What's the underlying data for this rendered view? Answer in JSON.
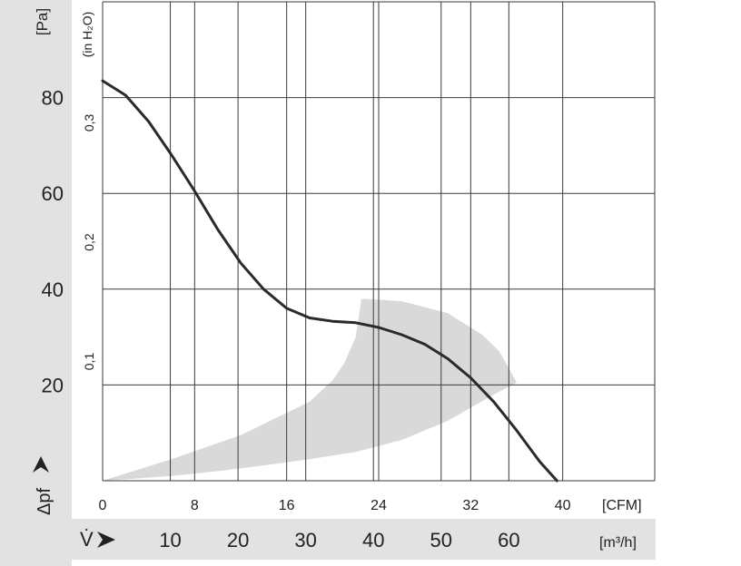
{
  "chart_data": {
    "type": "line",
    "y_unit_label": "[Pa]",
    "y2_unit_label": "(in H₂O)",
    "y_axis_symbol": "Δpf",
    "x_axis_symbol": "V̇",
    "x_top_unit_label": "[CFM]",
    "x_bottom_unit_label": "[m³/h]",
    "ylim": [
      0,
      100
    ],
    "xlim_cfm": [
      0,
      48
    ],
    "y_ticks": [
      "20",
      "40",
      "60",
      "80"
    ],
    "y2_ticks": [
      "0,1",
      "0,2",
      "0,3"
    ],
    "y2_tick_values_pa": [
      24.91,
      49.82,
      74.73
    ],
    "x_top_ticks": [
      "0",
      "8",
      "16",
      "24",
      "32",
      "40"
    ],
    "x_bottom_ticks": [
      "10",
      "20",
      "30",
      "40",
      "50",
      "60"
    ],
    "x_bottom_tick_values_m3h": [
      10,
      20,
      30,
      40,
      50,
      60
    ],
    "cfm_per_m3h": 0.5886,
    "grid": true,
    "series": [
      {
        "x_cfm": [
          0,
          2,
          4,
          6,
          8,
          10,
          12,
          14,
          16,
          18,
          20,
          22,
          24,
          26,
          28,
          30,
          32,
          34,
          36,
          38,
          39.5
        ],
        "y_pa": [
          83.5,
          80.5,
          75,
          68,
          60.5,
          52.5,
          45.5,
          40,
          36,
          34,
          33.3,
          33,
          32,
          30.5,
          28.5,
          25.5,
          21.5,
          16.5,
          10.5,
          4,
          0
        ],
        "color": "#2a2a2a"
      }
    ],
    "operating_region": {
      "color": "#d9d9d9",
      "x_cfm": [
        0,
        6,
        12,
        18,
        20,
        21,
        22,
        22.5,
        26,
        30,
        33,
        34.5,
        36,
        34,
        30,
        26,
        22,
        18,
        14,
        10,
        6,
        2,
        0
      ],
      "y_pa": [
        0,
        4.5,
        9.5,
        16.5,
        21,
        24.5,
        30,
        38,
        37.5,
        35,
        30.5,
        27,
        20.5,
        18,
        12.5,
        8.5,
        6,
        4.5,
        3.2,
        2,
        1,
        0.3,
        0
      ]
    }
  }
}
